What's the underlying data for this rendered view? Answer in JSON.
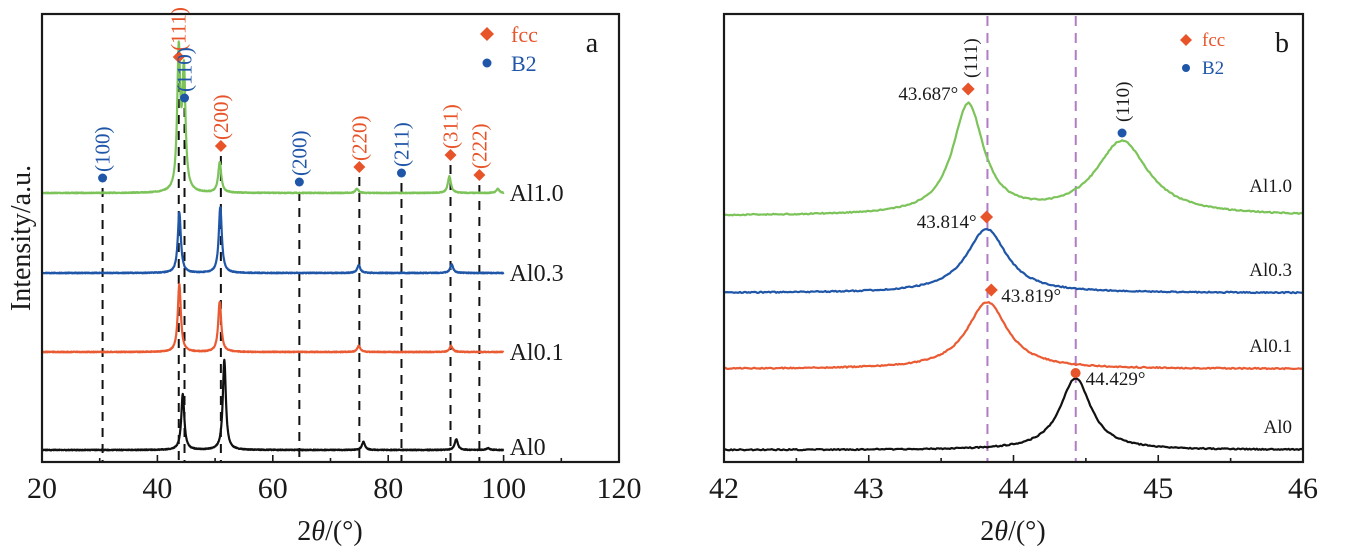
{
  "colors": {
    "fcc": "#e8542a",
    "B2": "#1f56a8",
    "Al1.0": "#7cc35a",
    "Al0.3": "#1f56a8",
    "Al0.1": "#ea5b33",
    "Al0": "#111111",
    "refline_a": "#111111",
    "refline_b": "#b07cc6"
  },
  "chart_data": [
    {
      "panel": "a",
      "type": "line",
      "panel_label": "a",
      "title": "",
      "xlabel": "2θ/(°)",
      "ylabel": "Intensity/a.u.",
      "xlim": [
        20,
        120
      ],
      "xticks": [
        20,
        40,
        60,
        80,
        100,
        120
      ],
      "xtick_labels": [
        "20",
        "40",
        "60",
        "80",
        "100",
        "120"
      ],
      "yticks_shown": false,
      "grid": false,
      "legend": {
        "placement": "top-right",
        "entries": [
          {
            "label": "fcc",
            "marker": "diamond",
            "color_key": "fcc"
          },
          {
            "label": "B2",
            "marker": "circle",
            "color_key": "B2"
          }
        ]
      },
      "series": [
        {
          "name": "Al1.0",
          "x_range": [
            20,
            100
          ],
          "peaks": [
            {
              "x": 43.7,
              "rel_height": 1.0
            },
            {
              "x": 44.6,
              "rel_height": 0.85
            },
            {
              "x": 50.8,
              "rel_height": 0.22
            },
            {
              "x": 74.6,
              "rel_height": 0.03
            },
            {
              "x": 90.6,
              "rel_height": 0.12
            },
            {
              "x": 99.0,
              "rel_height": 0.03
            }
          ]
        },
        {
          "name": "Al0.3",
          "x_range": [
            20,
            100
          ],
          "peaks": [
            {
              "x": 43.8,
              "rel_height": 0.92
            },
            {
              "x": 50.9,
              "rel_height": 1.0
            },
            {
              "x": 74.9,
              "rel_height": 0.12
            },
            {
              "x": 91.0,
              "rel_height": 0.13
            }
          ]
        },
        {
          "name": "Al0.1",
          "x_range": [
            20,
            100
          ],
          "peaks": [
            {
              "x": 43.8,
              "rel_height": 1.0
            },
            {
              "x": 50.8,
              "rel_height": 0.74
            },
            {
              "x": 74.9,
              "rel_height": 0.09
            },
            {
              "x": 90.9,
              "rel_height": 0.09
            }
          ]
        },
        {
          "name": "Al0",
          "x_range": [
            20,
            100
          ],
          "peaks": [
            {
              "x": 44.4,
              "rel_height": 0.62
            },
            {
              "x": 51.6,
              "rel_height": 1.0
            },
            {
              "x": 75.7,
              "rel_height": 0.09
            },
            {
              "x": 91.8,
              "rel_height": 0.12
            },
            {
              "x": 97.3,
              "rel_height": 0.02
            }
          ]
        }
      ],
      "reference_lines": [
        {
          "x": 30.5,
          "hkl": "(100)",
          "phase": "B2"
        },
        {
          "x": 43.7,
          "hkl": "(111)",
          "phase": "fcc"
        },
        {
          "x": 44.7,
          "hkl": "(110)",
          "phase": "B2"
        },
        {
          "x": 51.0,
          "hkl": "(200)",
          "phase": "fcc"
        },
        {
          "x": 64.6,
          "hkl": "(200)",
          "phase": "B2"
        },
        {
          "x": 75.0,
          "hkl": "(220)",
          "phase": "fcc"
        },
        {
          "x": 82.3,
          "hkl": "(211)",
          "phase": "B2"
        },
        {
          "x": 90.8,
          "hkl": "(311)",
          "phase": "fcc"
        },
        {
          "x": 95.8,
          "hkl": "(222)",
          "phase": "fcc"
        }
      ]
    },
    {
      "panel": "b",
      "type": "line",
      "panel_label": "b",
      "title": "",
      "xlabel": "2θ/(°)",
      "ylabel": "",
      "xlim": [
        42,
        46
      ],
      "xticks": [
        42,
        43,
        44,
        45,
        46
      ],
      "xtick_labels": [
        "42",
        "43",
        "44",
        "45",
        "46"
      ],
      "yticks_shown": false,
      "grid": false,
      "legend": {
        "placement": "top-right",
        "entries": [
          {
            "label": "fcc",
            "marker": "diamond",
            "color_key": "fcc"
          },
          {
            "label": "B2",
            "marker": "circle",
            "color_key": "B2"
          }
        ]
      },
      "series": [
        {
          "name": "Al1.0",
          "peaks": [
            {
              "x": 43.687,
              "rel_height": 1.0,
              "width": 0.13
            },
            {
              "x": 44.75,
              "rel_height": 0.67,
              "width": 0.22
            }
          ]
        },
        {
          "name": "Al0.3",
          "peaks": [
            {
              "x": 43.814,
              "rel_height": 1.0,
              "width": 0.17
            }
          ]
        },
        {
          "name": "Al0.1",
          "peaks": [
            {
              "x": 43.819,
              "rel_height": 1.0,
              "width": 0.17
            }
          ]
        },
        {
          "name": "Al0",
          "peaks": [
            {
              "x": 44.429,
              "rel_height": 1.0,
              "width": 0.13
            }
          ]
        }
      ],
      "peak_annotations": [
        {
          "series": "Al1.0",
          "x": 43.687,
          "label": "43.687°",
          "phase": "fcc",
          "side": "left"
        },
        {
          "series": "Al0.3",
          "x": 43.814,
          "label": "43.814°",
          "phase": "fcc",
          "side": "left"
        },
        {
          "series": "Al0.1",
          "x": 43.819,
          "label": "43.819°",
          "phase": "fcc",
          "side": "right"
        },
        {
          "series": "Al0",
          "x": 44.429,
          "label": "44.429°",
          "phase": "fcc-dot",
          "side": "right"
        }
      ],
      "hkl_labels": [
        {
          "x": 43.7,
          "hkl": "(111)"
        },
        {
          "x": 44.75,
          "hkl": "(110)",
          "phase": "B2"
        }
      ],
      "reference_lines": [
        {
          "x": 43.82
        },
        {
          "x": 44.43
        }
      ]
    }
  ]
}
